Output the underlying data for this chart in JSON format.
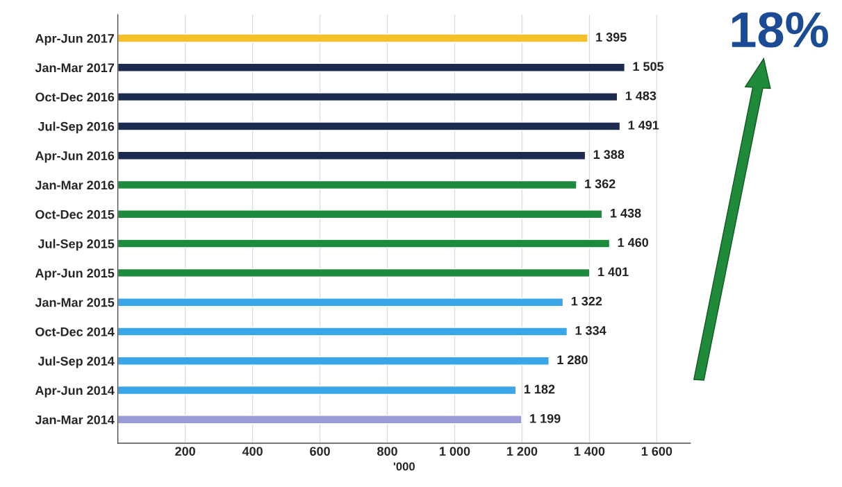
{
  "chart_data": {
    "type": "bar",
    "orientation": "horizontal",
    "categories": [
      "Apr-Jun 2017",
      "Jan-Mar 2017",
      "Oct-Dec 2016",
      "Jul-Sep 2016",
      "Apr-Jun 2016",
      "Jan-Mar 2016",
      "Oct-Dec 2015",
      "Jul-Sep 2015",
      "Apr-Jun 2015",
      "Jan-Mar 2015",
      "Oct-Dec 2014",
      "Jul-Sep 2014",
      "Apr-Jun 2014",
      "Jan-Mar 2014"
    ],
    "values": [
      1395,
      1505,
      1483,
      1491,
      1388,
      1362,
      1438,
      1460,
      1401,
      1322,
      1334,
      1280,
      1182,
      1199
    ],
    "value_labels": [
      "1 395",
      "1 505",
      "1 483",
      "1 491",
      "1 388",
      "1 362",
      "1 438",
      "1 460",
      "1 401",
      "1 322",
      "1 334",
      "1 280",
      "1 182",
      "1 199"
    ],
    "colors": [
      "#f5c02a",
      "#1b2a4e",
      "#1b2a4e",
      "#1b2a4e",
      "#1b2a4e",
      "#1e8a3e",
      "#1e8a3e",
      "#1e8a3e",
      "#1e8a3e",
      "#3aa5e8",
      "#3aa5e8",
      "#3aa5e8",
      "#3aa5e8",
      "#9a9ad6"
    ],
    "xlim": [
      0,
      1700
    ],
    "xticks": [
      200,
      400,
      600,
      800,
      {
        "value": 1000,
        "label": "1 000"
      },
      {
        "value": 1200,
        "label": "1 200"
      },
      {
        "value": 1400,
        "label": "1 400"
      },
      {
        "value": 1600,
        "label": "1 600"
      }
    ],
    "xlabel": "'000",
    "grid": "x",
    "annotations": [
      "18%"
    ]
  }
}
